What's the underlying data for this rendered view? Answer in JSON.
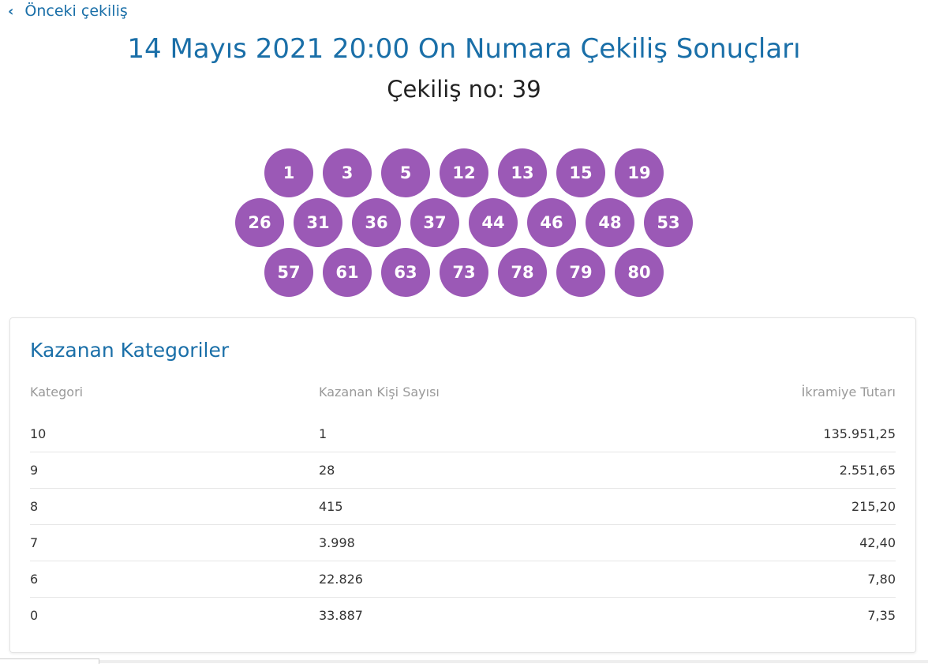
{
  "nav": {
    "back_label": "Önceki çekiliş",
    "back_icon": "chevron-left-icon"
  },
  "header": {
    "title": "14 Mayıs 2021 20:00 On Numara Çekiliş Sonuçları",
    "draw_no": "Çekiliş no: 39"
  },
  "ball_color": "#9b59b6",
  "balls": [
    [
      "1",
      "3",
      "5",
      "12",
      "13",
      "15",
      "19"
    ],
    [
      "26",
      "31",
      "36",
      "37",
      "44",
      "46",
      "48",
      "53"
    ],
    [
      "57",
      "61",
      "63",
      "73",
      "78",
      "79",
      "80"
    ]
  ],
  "winners": {
    "title": "Kazanan Kategoriler",
    "columns": [
      "Kategori",
      "Kazanan Kişi Sayısı",
      "İkramiye Tutarı"
    ],
    "rows": [
      [
        "10",
        "1",
        "135.951,25"
      ],
      [
        "9",
        "28",
        "2.551,65"
      ],
      [
        "8",
        "415",
        "215,20"
      ],
      [
        "7",
        "3.998",
        "42,40"
      ],
      [
        "6",
        "22.826",
        "7,80"
      ],
      [
        "0",
        "33.887",
        "7,35"
      ]
    ]
  }
}
